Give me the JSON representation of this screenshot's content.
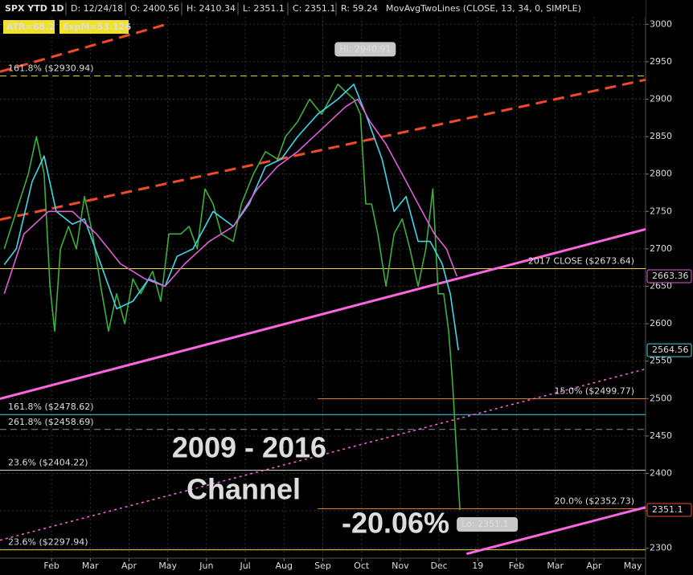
{
  "chart_data": {
    "type": "line",
    "header": [
      "SPX YTD 1D",
      "D: 12/24/18",
      "O: 2400.56",
      "H: 2410.34",
      "L: 2351.1",
      "C: 2351.1",
      "R: 59.24"
    ],
    "study": "MovAvgTwoLines (CLOSE, 13, 34, 0, SIMPLE)",
    "badges": [
      "ATR=68.2",
      "ExpM=53.126"
    ],
    "xlim": [
      -0.33,
      16.33
    ],
    "ylim": [
      2290,
      3010
    ],
    "xticks": [
      {
        "value": 1,
        "label": "Feb"
      },
      {
        "value": 2,
        "label": "Mar"
      },
      {
        "value": 3,
        "label": "Apr"
      },
      {
        "value": 4,
        "label": "May"
      },
      {
        "value": 5,
        "label": "Jun"
      },
      {
        "value": 6,
        "label": "Jul"
      },
      {
        "value": 7,
        "label": "Aug"
      },
      {
        "value": 8,
        "label": "Sep"
      },
      {
        "value": 9,
        "label": "Oct"
      },
      {
        "value": 10,
        "label": "Nov"
      },
      {
        "value": 11,
        "label": "Dec"
      },
      {
        "value": 12,
        "label": "19"
      },
      {
        "value": 13,
        "label": "Feb"
      },
      {
        "value": 14,
        "label": "Mar"
      },
      {
        "value": 15,
        "label": "Apr"
      },
      {
        "value": 16,
        "label": "May"
      }
    ],
    "yticks": [
      2300,
      2350,
      2400,
      2450,
      2500,
      2550,
      2600,
      2650,
      2700,
      2750,
      2800,
      2850,
      2900,
      2950,
      3000
    ],
    "grid": true,
    "series": [
      {
        "name": "SPX",
        "color": "#3fae3f",
        "width": 1.6,
        "x": [
          -0.22,
          0.09,
          0.4,
          0.61,
          0.81,
          0.96,
          1.08,
          1.23,
          1.44,
          1.64,
          1.85,
          2.06,
          2.27,
          2.47,
          2.68,
          2.89,
          3.1,
          3.3,
          3.61,
          3.82,
          4.03,
          4.34,
          4.55,
          4.76,
          4.96,
          5.17,
          5.38,
          5.69,
          5.9,
          6.21,
          6.52,
          6.83,
          7.04,
          7.35,
          7.66,
          7.97,
          8.18,
          8.39,
          8.59,
          8.8,
          8.97,
          9.11,
          9.26,
          9.42,
          9.63,
          9.84,
          10.05,
          10.25,
          10.46,
          10.66,
          10.84,
          10.98,
          11.12,
          11.25,
          11.35,
          11.46,
          11.54
        ],
        "values": [
          2700,
          2750,
          2800,
          2850,
          2800,
          2650,
          2590,
          2700,
          2730,
          2700,
          2770,
          2720,
          2650,
          2590,
          2640,
          2600,
          2660,
          2640,
          2670,
          2630,
          2720,
          2720,
          2730,
          2700,
          2780,
          2760,
          2720,
          2710,
          2760,
          2800,
          2830,
          2820,
          2850,
          2870,
          2900,
          2880,
          2900,
          2920,
          2910,
          2900,
          2880,
          2760,
          2760,
          2720,
          2650,
          2720,
          2740,
          2700,
          2650,
          2700,
          2780,
          2640,
          2640,
          2590,
          2520,
          2420,
          2351.1
        ]
      },
      {
        "name": "MA 13",
        "color": "#3fd8e8",
        "width": 1.6,
        "x": [
          -0.22,
          0.09,
          0.5,
          0.81,
          1.12,
          1.54,
          1.85,
          2.27,
          2.68,
          3.1,
          3.51,
          3.93,
          4.24,
          4.65,
          5.17,
          5.69,
          6.1,
          6.52,
          6.93,
          7.35,
          7.87,
          8.39,
          8.8,
          9.11,
          9.53,
          9.84,
          10.15,
          10.46,
          10.77,
          11.08,
          11.29,
          11.5
        ],
        "values": [
          2679,
          2700,
          2790,
          2824,
          2750,
          2733,
          2740,
          2680,
          2620,
          2630,
          2660,
          2650,
          2690,
          2700,
          2750,
          2730,
          2760,
          2810,
          2820,
          2850,
          2880,
          2900,
          2920,
          2880,
          2820,
          2750,
          2770,
          2710,
          2710,
          2680,
          2640,
          2564.56
        ]
      },
      {
        "name": "MA 34",
        "color": "#e060d8",
        "width": 1.6,
        "x": [
          -0.22,
          0.29,
          0.92,
          1.54,
          2.16,
          2.78,
          3.41,
          3.93,
          4.44,
          5.07,
          5.69,
          6.31,
          6.83,
          7.35,
          7.97,
          8.59,
          8.9,
          9.22,
          9.63,
          10.05,
          10.46,
          10.88,
          11.19,
          11.46
        ],
        "values": [
          2640,
          2720,
          2750,
          2750,
          2720,
          2680,
          2660,
          2650,
          2680,
          2710,
          2730,
          2780,
          2810,
          2830,
          2860,
          2890,
          2900,
          2870,
          2840,
          2800,
          2760,
          2720,
          2700,
          2663.36
        ]
      }
    ],
    "trendlines": [
      {
        "color": "#f04a28",
        "dash": "14,8",
        "width": 3,
        "x": [
          -0.33,
          4.03
        ],
        "y": [
          2936.7,
          3001
        ]
      },
      {
        "color": "#f04a28",
        "dash": "14,8",
        "width": 3,
        "x": [
          -0.33,
          16.33
        ],
        "y": [
          2739,
          2926
        ]
      },
      {
        "color": "#ff66e0",
        "dash": "none",
        "width": 3,
        "x": [
          -0.33,
          16.33
        ],
        "y": [
          2499.7,
          2726.2
        ]
      },
      {
        "color": "#ff66e0",
        "dash": "3,4",
        "width": 1.5,
        "x": [
          -0.33,
          16.33
        ],
        "y": [
          2310.7,
          2539.4
        ]
      },
      {
        "color": "#ff66e0",
        "dash": "none",
        "width": 3,
        "x": [
          11.71,
          16.33
        ],
        "y": [
          2292.5,
          2354.7
        ]
      }
    ],
    "levels": [
      {
        "label": "161.8% ($2930.94)",
        "value": 2930.94,
        "color": "#e8d840",
        "dash": "8,5",
        "start": -0.33,
        "align": "left"
      },
      {
        "label": "2017 CLOSE ($2673.64)",
        "value": 2673.64,
        "color": "#e8d840",
        "dash": "none",
        "start": -0.33,
        "align": "right"
      },
      {
        "label": "15.0% ($2499.77)",
        "value": 2499.77,
        "color": "#e07a20",
        "dash": "none",
        "start": 7.87,
        "align": "right"
      },
      {
        "label": "161.8% ($2478.62)",
        "value": 2478.62,
        "color": "#3fd8e8",
        "dash": "none",
        "start": -0.33,
        "align": "left"
      },
      {
        "label": "261.8% ($2458.69)",
        "value": 2458.69,
        "color": "#8a8a8a",
        "dash": "8,5",
        "start": -0.33,
        "align": "left"
      },
      {
        "label": "23.6% ($2404.22)",
        "value": 2404.22,
        "color": "#d0d0d0",
        "dash": "none",
        "start": -0.33,
        "align": "left"
      },
      {
        "label": "20.0% ($2352.73)",
        "value": 2352.73,
        "color": "#e07a20",
        "dash": "none",
        "start": 7.87,
        "align": "right"
      },
      {
        "label": "23.6% ($2297.94)",
        "value": 2297.94,
        "color": "#e8d840",
        "dash": "none",
        "start": -0.33,
        "align": "left"
      }
    ],
    "price_tags": [
      {
        "value": 2663.36,
        "color": "#e060d8"
      },
      {
        "value": 2564.56,
        "color": "#3fd8e8"
      },
      {
        "value": 2351.1,
        "color": "#f04a28"
      }
    ],
    "callouts": [
      {
        "label": "Hi: 2940.91",
        "x": 8.39,
        "value": 2940.91
      },
      {
        "label": "Lo: 2351.1",
        "x": 11.54,
        "value": 2351.1
      }
    ],
    "annotations": [
      {
        "text": "2009 - 2016",
        "color": "#ff66e0"
      },
      {
        "text": "Channel",
        "color": "#ff66e0"
      },
      {
        "text": "-20.06%",
        "color": "#ffff33"
      }
    ]
  }
}
